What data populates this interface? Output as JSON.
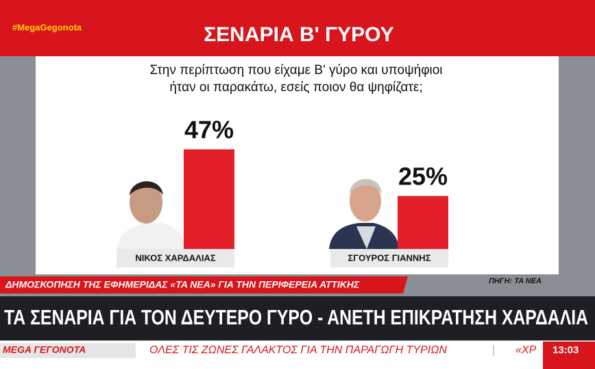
{
  "hashtag": "#MegaGegonota",
  "chart_data": {
    "type": "bar",
    "title": "ΣΕΝΑΡΙΑ Β' ΓΥΡΟΥ",
    "subtitle": [
      "Στην περίπτωση που είχαμε Β' γύρο και υποψήφιοι",
      "ήταν οι παρακάτω, εσείς ποιον θα ψηφίζατε;"
    ],
    "categories": [
      "ΝΙΚΟΣ ΧΑΡΔΑΛΙΑΣ",
      "ΣΓΟΥΡΟΣ ΓΙΑΝΝΗΣ"
    ],
    "values": [
      47,
      25
    ],
    "value_labels": [
      "47%",
      "25%"
    ],
    "color": "#e3202a",
    "source": "ΠΗΓΗ: ΤΑ ΝΕΑ"
  },
  "strap": "ΔΗΜΟΣΚΟΠΗΣΗ ΤΗΣ ΕΦΗΜΕΡΙΔΑΣ «ΤΑ ΝΕΑ» ΓΙΑ ΤΗΝ ΠΕΡΙΦΕΡΕΙΑ ΑΤΤΙΚΗΣ",
  "headline": "ΤΑ ΣΕΝΑΡΙΑ ΓΙΑ ΤΟΝ ΔΕΥΤΕΡΟ ΓΥΡΟ - ΑΝΕΤΗ ΕΠΙΚΡΑΤΗΣΗ ΧΑΡΔΑΛΙΑ",
  "ticker": {
    "logo": "MEGA ΓΕΓΟΝΟΤΑ",
    "text": "ΟΛΕΣ ΤΙΣ ΖΩΝΕΣ ΓΑΛΑΚΤΟΣ ΓΙΑ ΤΗΝ ΠΑΡΑΓΩΓΗ ΤΥΡΙΩΝ",
    "next": "«ΧΡ",
    "time": "13:03"
  }
}
